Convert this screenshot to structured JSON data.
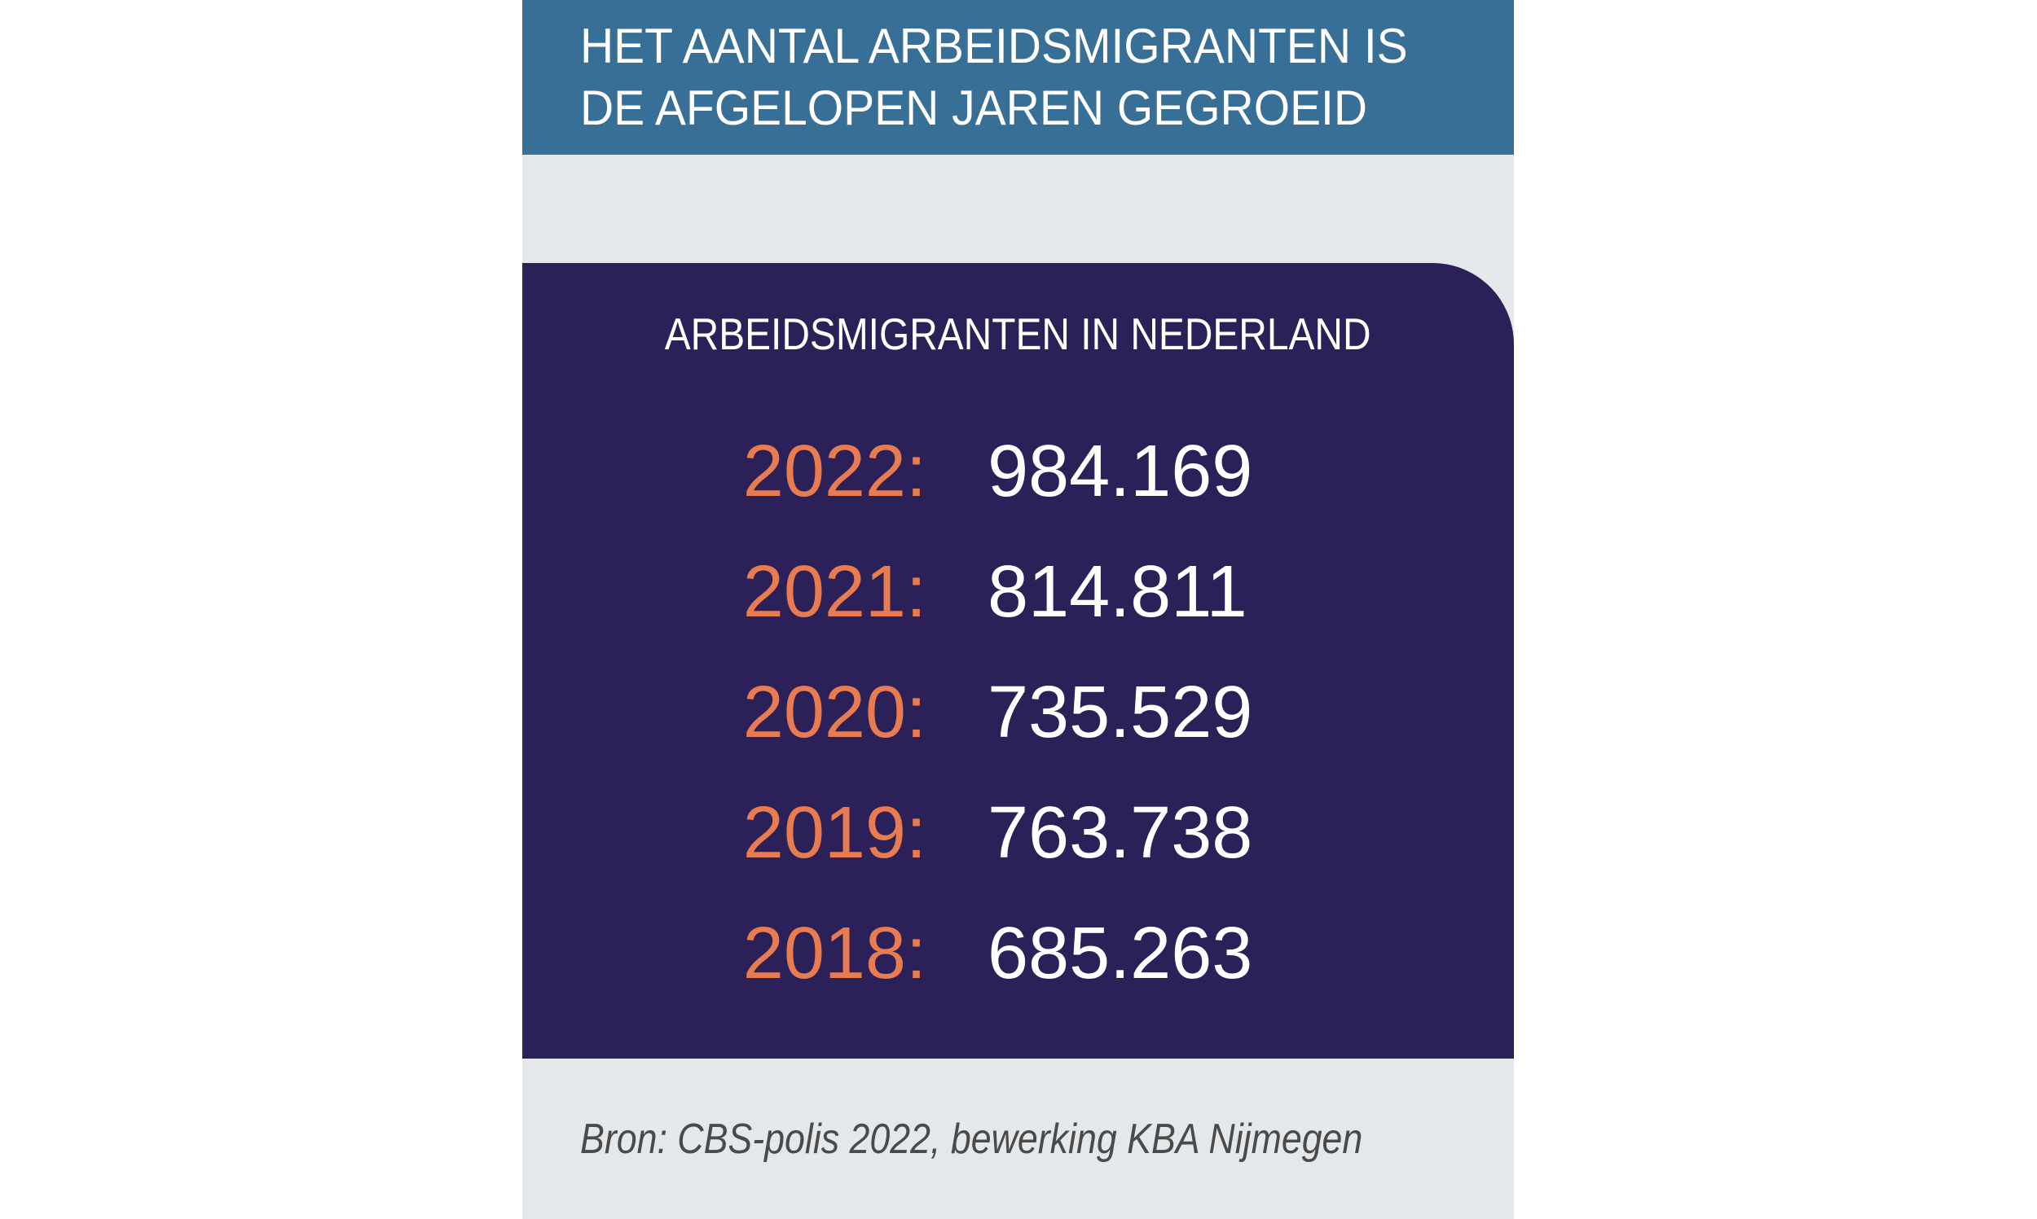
{
  "header": {
    "line1": "HET AANTAL ARBEIDSMIGRANTEN IS",
    "line2": "DE AFGELOPEN JAREN GEGROEID",
    "background_color": "#386F96",
    "text_color": "#FFFFFF"
  },
  "panel": {
    "title": "ARBEIDSMIGRANTEN IN NEDERLAND",
    "background_color": "#2B2058",
    "year_color": "#E87C50",
    "value_color": "#FFFFFF"
  },
  "rows": [
    {
      "year": "2022:",
      "value": "984.169"
    },
    {
      "year": "2021:",
      "value": "814.811"
    },
    {
      "year": "2020:",
      "value": "735.529"
    },
    {
      "year": "2019:",
      "value": "763.738"
    },
    {
      "year": "2018:",
      "value": "685.263"
    }
  ],
  "footer": {
    "source": "Bron: CBS-polis 2022, bewerking KBA Nijmegen",
    "background_color": "#E5E8EB",
    "text_color": "#4A4A4A"
  },
  "chart_data": {
    "type": "table",
    "title": "ARBEIDSMIGRANTEN IN NEDERLAND",
    "subtitle": "HET AANTAL ARBEIDSMIGRANTEN IS DE AFGELOPEN JAREN GEGROEID",
    "categories": [
      "2022",
      "2021",
      "2020",
      "2019",
      "2018"
    ],
    "values": [
      984169,
      814811,
      735529,
      763738,
      685263
    ],
    "value_format": "thousands separated by period",
    "source": "Bron: CBS-polis 2022, bewerking KBA Nijmegen"
  }
}
